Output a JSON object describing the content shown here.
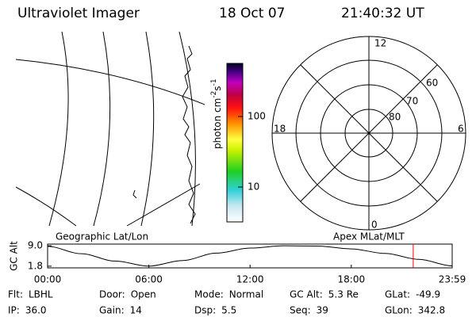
{
  "header": {
    "title": "Ultraviolet Imager",
    "date": "18 Oct 07",
    "time": "21:40:32 UT"
  },
  "colorbar": {
    "label_parts": [
      "photon cm",
      "-2",
      "s",
      "-1"
    ],
    "ticks": [
      100,
      10
    ]
  },
  "polar": {
    "mlt_labels": [
      12,
      18,
      6,
      0
    ],
    "lat_labels": [
      60,
      70,
      80
    ]
  },
  "panel_labels": {
    "left": "Geographic Lat/Lon",
    "right": "Apex MLat/MLT"
  },
  "chart_data": {
    "type": "line",
    "ylabel": "GC Alt",
    "x": [
      0,
      2,
      4,
      6,
      8,
      10,
      12,
      14,
      16,
      18,
      20,
      22,
      23.98
    ],
    "values": [
      8.8,
      6.2,
      3.6,
      1.8,
      3.8,
      6.4,
      8.2,
      9.0,
      8.9,
      7.9,
      6.3,
      4.2,
      1.9
    ],
    "color": "#000000",
    "xlim": [
      0,
      23.98
    ],
    "ylim": [
      1.2,
      9.6
    ],
    "xticks": [
      {
        "value": 0,
        "label": "00:00"
      },
      {
        "value": 6,
        "label": "06:00"
      },
      {
        "value": 12,
        "label": "12:00"
      },
      {
        "value": 18,
        "label": "18:00"
      },
      {
        "value": 23.98,
        "label": "23:59"
      }
    ],
    "yticks": [
      {
        "value": 9.0,
        "label": "9.0"
      },
      1.8
    ],
    "marker_x": 21.67,
    "marker_color": "#ff0000"
  },
  "info": [
    [
      {
        "label": "Flt:",
        "value": "LBHL"
      },
      {
        "label": "Door:",
        "value": "Open"
      },
      {
        "label": "Mode:",
        "value": "Normal"
      },
      {
        "label": "GC Alt:",
        "value": "5.3 Re"
      },
      {
        "label": "GLat:",
        "value": "-49.9"
      }
    ],
    [
      {
        "label": "IP:",
        "value": "36.0"
      },
      {
        "label": "Gain:",
        "value": "14"
      },
      {
        "label": "Dsp:",
        "value": "5.5"
      },
      {
        "label": "Seq:",
        "value": "39"
      },
      {
        "label": "GLon:",
        "value": "342.8"
      }
    ]
  ]
}
